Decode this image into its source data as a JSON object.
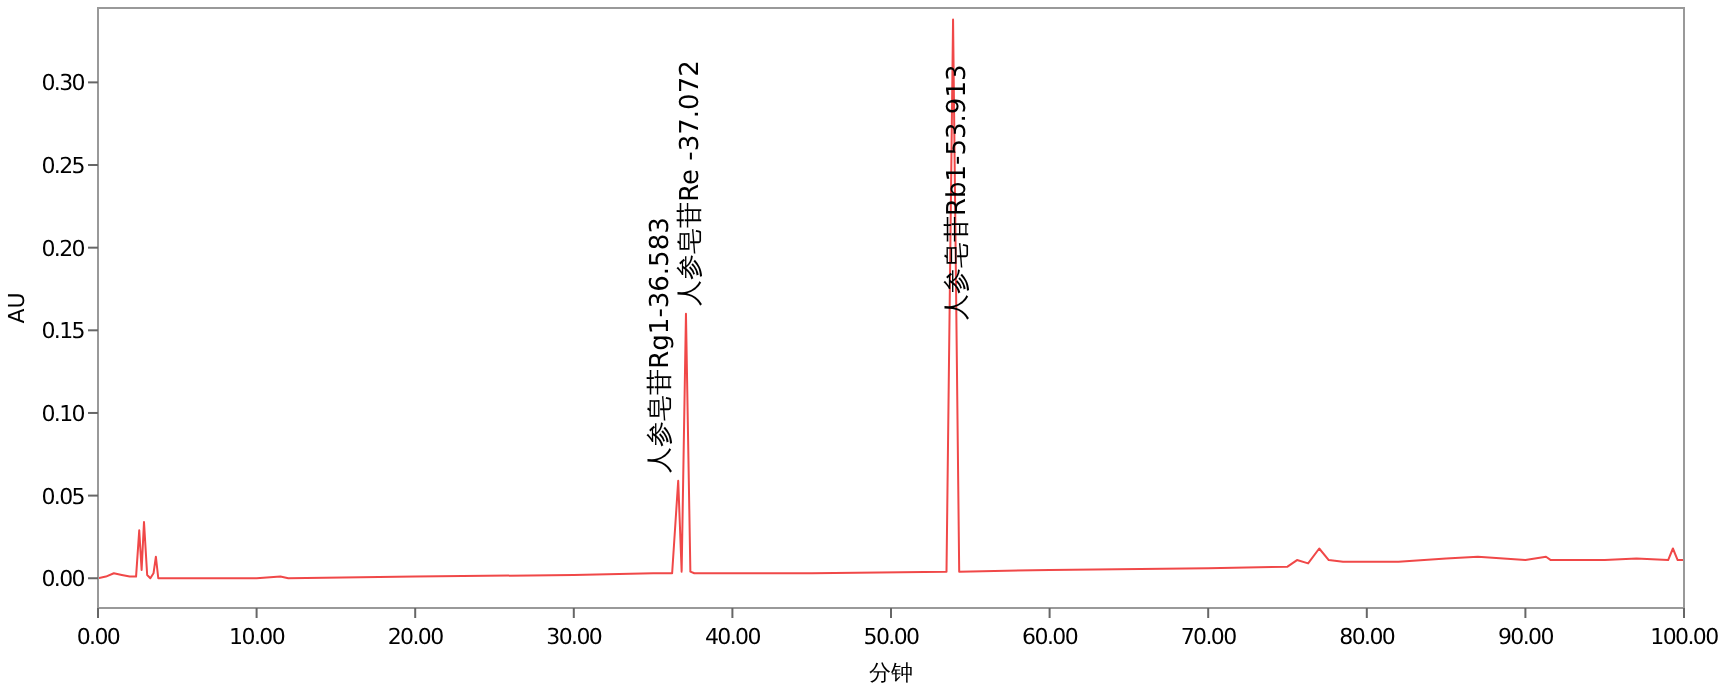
{
  "chart_data": {
    "type": "line",
    "xlabel": "分钟",
    "ylabel": "AU",
    "xlim": [
      0,
      100
    ],
    "ylim": [
      -0.018,
      0.345
    ],
    "xticks": [
      {
        "value": 0,
        "label": "0.00"
      },
      {
        "value": 10,
        "label": "10.00"
      },
      {
        "value": 20,
        "label": "20.00"
      },
      {
        "value": 30,
        "label": "30.00"
      },
      {
        "value": 40,
        "label": "40.00"
      },
      {
        "value": 50,
        "label": "50.00"
      },
      {
        "value": 60,
        "label": "60.00"
      },
      {
        "value": 70,
        "label": "70.00"
      },
      {
        "value": 80,
        "label": "80.00"
      },
      {
        "value": 90,
        "label": "90.00"
      },
      {
        "value": 100,
        "label": "100.00"
      }
    ],
    "yticks": [
      {
        "value": 0,
        "label": "0.00"
      },
      {
        "value": 0.05,
        "label": "0.05"
      },
      {
        "value": 0.1,
        "label": "0.10"
      },
      {
        "value": 0.15,
        "label": "0.15"
      },
      {
        "value": 0.2,
        "label": "0.20"
      },
      {
        "value": 0.25,
        "label": "0.25"
      },
      {
        "value": 0.3,
        "label": "0.30"
      }
    ],
    "grid": false,
    "line_style": "solid",
    "series": [
      {
        "color": "#f04848",
        "x": [
          0,
          0.5,
          1,
          1.5,
          2,
          2.4,
          2.6,
          2.75,
          2.9,
          3.1,
          3.3,
          3.5,
          3.65,
          3.8,
          4.2,
          10,
          11.5,
          12,
          20,
          30,
          35,
          36.2,
          36.583,
          36.8,
          37.072,
          37.35,
          37.6,
          45,
          53.5,
          53.913,
          54.3,
          60,
          70,
          75,
          75.6,
          76.3,
          77,
          77.6,
          78.5,
          82,
          85,
          87,
          90,
          91.3,
          91.6,
          95,
          97,
          99,
          99.3,
          99.6,
          100
        ],
        "values": [
          0,
          0.001,
          0.003,
          0.002,
          0.001,
          0.001,
          0.029,
          0.005,
          0.034,
          0.002,
          0,
          0.003,
          0.013,
          0,
          0,
          0,
          0.001,
          0,
          0.001,
          0.002,
          0.003,
          0.003,
          0.059,
          0.004,
          0.16,
          0.004,
          0.003,
          0.003,
          0.004,
          0.338,
          0.004,
          0.005,
          0.006,
          0.007,
          0.011,
          0.009,
          0.018,
          0.011,
          0.01,
          0.01,
          0.012,
          0.013,
          0.011,
          0.013,
          0.011,
          0.011,
          0.012,
          0.011,
          0.018,
          0.011,
          0.011
        ]
      }
    ],
    "annotations": [
      {
        "text": "人参皂苷Rg1-36.583",
        "x": 36.583,
        "y": 0.059
      },
      {
        "text": "人参皂苷Re -37.072",
        "x": 37.072,
        "y": 0.16
      },
      {
        "text": "人参皂苷Rb1-53.913",
        "x": 53.913,
        "y": 0.338
      }
    ]
  }
}
